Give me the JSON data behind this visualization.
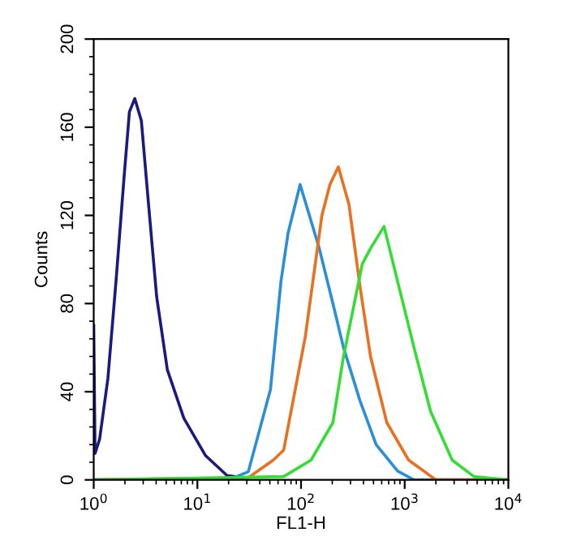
{
  "chart_data": {
    "type": "line",
    "xlabel": "FL1-H",
    "ylabel": "Counts",
    "log": "x",
    "xlim": [
      1,
      10000
    ],
    "xticks": [
      {
        "value": 1,
        "label": "10$^{0}$"
      },
      {
        "value": 10,
        "label": "10$^{1}$"
      },
      {
        "value": 100,
        "label": "10$^{2}$"
      },
      {
        "value": 1000,
        "label": "10$^{3}$"
      },
      {
        "value": 10000,
        "label": "10$^{4}$"
      }
    ],
    "ylim": [
      0,
      200
    ],
    "yticks": [
      0,
      40,
      80,
      120,
      160,
      200
    ],
    "grid": false,
    "legend": false,
    "marker": "none",
    "line_style": "solid",
    "series": [
      {
        "color": "#1a1a80",
        "x": [
          1.0,
          1.03,
          1.14,
          1.37,
          1.64,
          1.96,
          2.21,
          2.49,
          2.88,
          3.38,
          4.05,
          5.13,
          7.4,
          12,
          19.3,
          27.6
        ],
        "values": [
          70,
          12,
          18.5,
          46,
          90,
          137,
          167,
          173,
          163,
          125,
          83,
          50,
          28,
          11,
          2,
          1
        ]
      },
      {
        "color": "#2a8fd6",
        "x": [
          1,
          20,
          31,
          50.7,
          64,
          75,
          98,
          150,
          203,
          257,
          370,
          530,
          855,
          1230,
          10000
        ],
        "values": [
          0,
          0,
          3.7,
          41,
          90,
          112,
          134,
          105,
          80,
          60,
          36,
          16,
          4,
          0,
          0
        ]
      },
      {
        "color": "#e8701e",
        "x": [
          1,
          31,
          54,
          68,
          110,
          159,
          190,
          229,
          290,
          370,
          468,
          672,
          1090,
          2000,
          10000
        ],
        "values": [
          0,
          1,
          9,
          13.5,
          65,
          120,
          134,
          142,
          125,
          88,
          56,
          26,
          9,
          0,
          0
        ]
      },
      {
        "color": "#33dd33",
        "x": [
          1,
          68,
          125,
          203,
          257,
          390,
          468,
          632,
          855,
          1230,
          1780,
          2870,
          4660,
          10000
        ],
        "values": [
          0,
          1.5,
          9,
          26,
          56,
          98,
          105,
          115,
          90,
          60,
          31,
          9,
          1.5,
          0
        ]
      }
    ]
  }
}
